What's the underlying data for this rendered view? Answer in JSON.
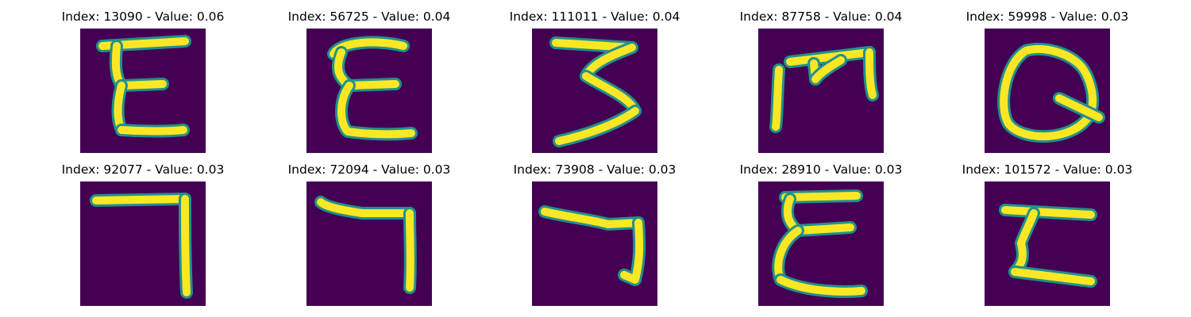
{
  "colors": {
    "background": "#440154",
    "stroke_core": "#fde725",
    "stroke_edge": "#21918c"
  },
  "panels": [
    {
      "title": "Index: 13090 - Value: 0.06",
      "glyph": "E-shape"
    },
    {
      "title": "Index: 56725 - Value: 0.04",
      "glyph": "E-shape"
    },
    {
      "title": "Index: 111011 - Value: 0.04",
      "glyph": "3-shape"
    },
    {
      "title": "Index: 87758 - Value: 0.04",
      "glyph": "m-shape"
    },
    {
      "title": "Index: 59998 - Value: 0.03",
      "glyph": "Q-shape"
    },
    {
      "title": "Index: 92077 - Value: 0.03",
      "glyph": "7-shape"
    },
    {
      "title": "Index: 72094 - Value: 0.03",
      "glyph": "7-shape"
    },
    {
      "title": "Index: 73908 - Value: 0.03",
      "glyph": "7-shape"
    },
    {
      "title": "Index: 28910 - Value: 0.03",
      "glyph": "E-shape"
    },
    {
      "title": "Index: 101572 - Value: 0.03",
      "glyph": "Z-shape"
    }
  ]
}
